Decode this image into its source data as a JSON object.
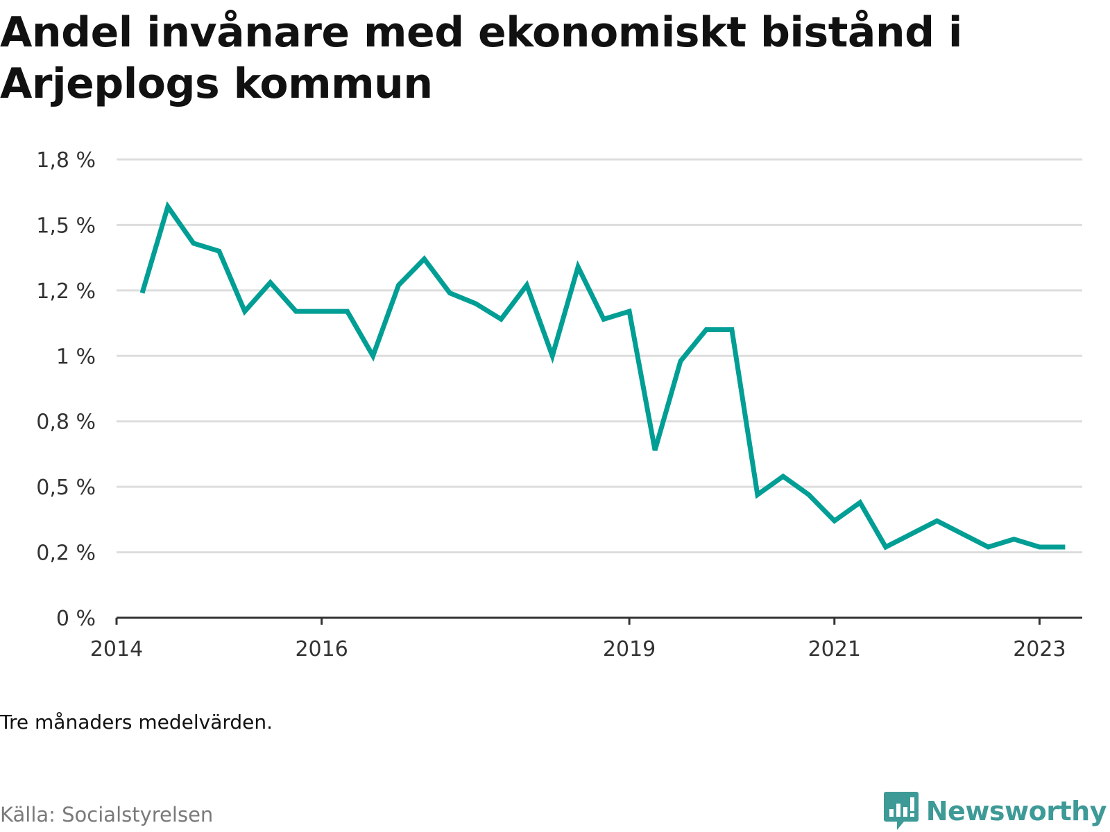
{
  "colors": {
    "line": "#009e94",
    "grid": "#dddddd",
    "axis": "#333333",
    "brand": "#3e9a97"
  },
  "footer": {
    "note": "Tre månaders medelvärden.",
    "source": "Källa: Socialstyrelsen",
    "brand_name": "Newsworthy",
    "brand_icon": "newsworthy-logo-icon"
  },
  "chart_data": {
    "type": "line",
    "title": "Andel invånare med ekonomiskt bistånd i Arjeplogs kommun",
    "xlabel": "",
    "ylabel": "",
    "ylim": [
      0,
      1.75
    ],
    "y_ticks": [
      0,
      0.25,
      0.5,
      0.75,
      1,
      1.25,
      1.5,
      1.75
    ],
    "y_tick_labels": [
      "0 %",
      "0,2 %",
      "0,5 %",
      "0,8 %",
      "1 %",
      "1,2 %",
      "1,5 %",
      "1,8 %"
    ],
    "x_range": [
      "2014-01",
      "2023-06"
    ],
    "x_ticks": [
      "2014-01",
      "2016-01",
      "2019-01",
      "2021-01",
      "2023-01"
    ],
    "x_tick_labels": [
      "2014",
      "2016",
      "2019",
      "2021",
      "2023"
    ],
    "grid": true,
    "legend": "none",
    "series": [
      {
        "x": [
          "2014-04",
          "2014-07",
          "2014-10",
          "2015-01",
          "2015-04",
          "2015-07",
          "2015-10",
          "2016-01",
          "2016-04",
          "2016-07",
          "2016-10",
          "2017-01",
          "2017-04",
          "2017-07",
          "2017-10",
          "2018-01",
          "2018-04",
          "2018-07",
          "2018-10",
          "2019-01",
          "2019-04",
          "2019-07",
          "2019-10",
          "2020-01",
          "2020-04",
          "2020-07",
          "2020-10",
          "2021-01",
          "2021-04",
          "2021-07",
          "2021-10",
          "2022-01",
          "2022-04",
          "2022-07",
          "2022-10",
          "2023-01",
          "2023-04"
        ],
        "values": [
          1.24,
          1.57,
          1.43,
          1.4,
          1.17,
          1.28,
          1.17,
          1.17,
          1.17,
          1.0,
          1.27,
          1.37,
          1.24,
          1.2,
          1.14,
          1.27,
          1.0,
          1.34,
          1.14,
          1.17,
          0.64,
          0.98,
          1.1,
          1.1,
          0.47,
          0.54,
          0.47,
          0.37,
          0.44,
          0.27,
          0.32,
          0.37,
          0.32,
          0.27,
          0.3,
          0.27,
          0.27
        ]
      }
    ]
  }
}
